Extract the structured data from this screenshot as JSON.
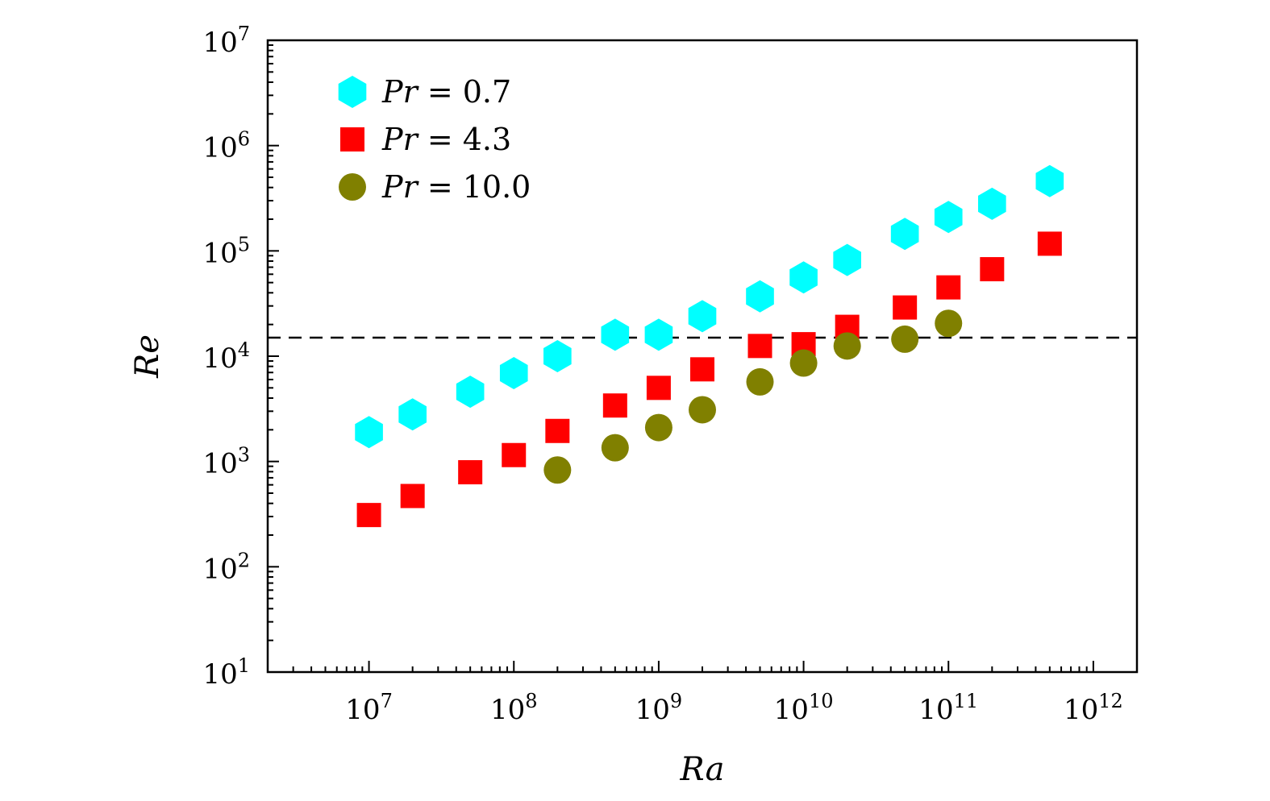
{
  "chart_data": {
    "type": "scatter",
    "x_scale": "log",
    "y_scale": "log",
    "xlabel": "Ra",
    "ylabel": "Re",
    "xlim": [
      2000000.0,
      2000000000000.0
    ],
    "ylim": [
      10,
      10000000
    ],
    "x_ticks": [
      {
        "base": "10",
        "exp": "7",
        "value": 10000000.0
      },
      {
        "base": "10",
        "exp": "8",
        "value": 100000000.0
      },
      {
        "base": "10",
        "exp": "9",
        "value": 1000000000.0
      },
      {
        "base": "10",
        "exp": "10",
        "value": 10000000000.0
      },
      {
        "base": "10",
        "exp": "11",
        "value": 100000000000.0
      },
      {
        "base": "10",
        "exp": "12",
        "value": 1000000000000.0
      }
    ],
    "y_ticks": [
      {
        "base": "10",
        "exp": "1",
        "value": 10.0
      },
      {
        "base": "10",
        "exp": "2",
        "value": 100.0
      },
      {
        "base": "10",
        "exp": "3",
        "value": 1000.0
      },
      {
        "base": "10",
        "exp": "4",
        "value": 10000.0
      },
      {
        "base": "10",
        "exp": "5",
        "value": 100000.0
      },
      {
        "base": "10",
        "exp": "6",
        "value": 1000000.0
      },
      {
        "base": "10",
        "exp": "7",
        "value": 10000000.0
      }
    ],
    "reference_line": {
      "y": 15000,
      "style": "dashed",
      "color": "#000000"
    },
    "legend_position": "top-left",
    "series": [
      {
        "name": "Pr = 0.7",
        "var": "Pr",
        "eq": " = ",
        "val": "0.7",
        "marker": "hexagon",
        "color": "#00FFFF",
        "x": [
          10000000.0,
          20000000.0,
          50000000.0,
          100000000.0,
          200000000.0,
          500000000.0,
          1000000000.0,
          2000000000.0,
          5000000000.0,
          10000000000.0,
          20000000000.0,
          50000000000.0,
          100000000000.0,
          200000000000.0,
          500000000000.0
        ],
        "y": [
          1900,
          2800,
          4600,
          6900,
          10000,
          16000,
          16000,
          24000,
          37000,
          56000,
          82000,
          145000,
          210000,
          280000,
          460000
        ]
      },
      {
        "name": "Pr = 4.3",
        "var": "Pr",
        "eq": " = ",
        "val": "4.3",
        "marker": "square",
        "color": "#FF0000",
        "x": [
          10000000.0,
          20000000.0,
          50000000.0,
          100000000.0,
          200000000.0,
          500000000.0,
          1000000000.0,
          2000000000.0,
          5000000000.0,
          10000000000.0,
          20000000000.0,
          50000000000.0,
          100000000000.0,
          200000000000.0,
          500000000000.0
        ],
        "y": [
          310,
          470,
          790,
          1150,
          1950,
          3400,
          5000,
          7500,
          12500,
          13000,
          19000,
          29000,
          45000,
          67000,
          117000
        ]
      },
      {
        "name": "Pr = 10.0",
        "var": "Pr",
        "eq": " = ",
        "val": "10.0",
        "marker": "circle",
        "color": "#808000",
        "x": [
          200000000.0,
          500000000.0,
          1000000000.0,
          2000000000.0,
          5000000000.0,
          10000000000.0,
          20000000000.0,
          50000000000.0,
          100000000000.0
        ],
        "y": [
          830,
          1350,
          2100,
          3100,
          5700,
          8600,
          12500,
          14500,
          20500
        ]
      }
    ]
  }
}
